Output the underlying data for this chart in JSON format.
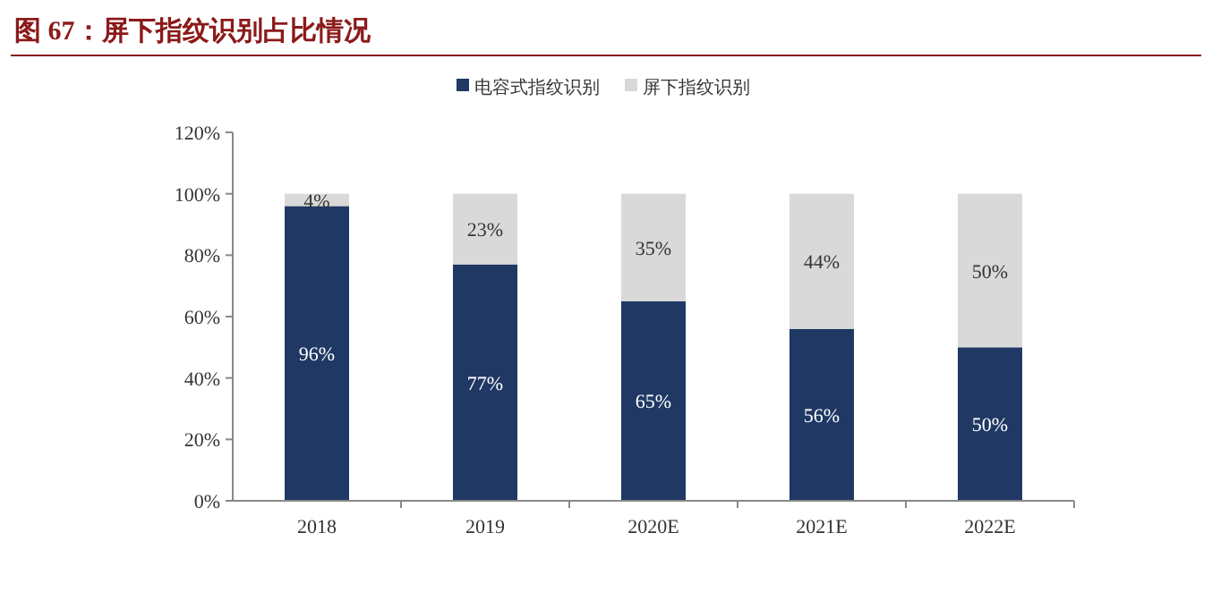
{
  "chart_data": {
    "type": "bar",
    "title": "图 67：屏下指纹识别占比情况",
    "stacked": true,
    "legend": "top",
    "categories": [
      "2018",
      "2019",
      "2020E",
      "2021E",
      "2022E"
    ],
    "series": [
      {
        "name": "电容式指纹识别",
        "color": "#1f3864",
        "values": [
          96,
          77,
          65,
          56,
          50
        ],
        "value_labels": [
          "96%",
          "77%",
          "65%",
          "56%",
          "50%"
        ]
      },
      {
        "name": "屏下指纹识别",
        "color": "#d9d9d9",
        "values": [
          4,
          23,
          35,
          44,
          50
        ],
        "value_labels": [
          "4%",
          "23%",
          "35%",
          "44%",
          "50%"
        ]
      }
    ],
    "ylim": [
      0,
      120
    ],
    "yticks": [
      {
        "value": 0,
        "label": "0%"
      },
      {
        "value": 20,
        "label": "20%"
      },
      {
        "value": 40,
        "label": "40%"
      },
      {
        "value": 60,
        "label": "60%"
      },
      {
        "value": 80,
        "label": "80%"
      },
      {
        "value": 100,
        "label": "100%"
      },
      {
        "value": 120,
        "label": "120%"
      }
    ]
  }
}
